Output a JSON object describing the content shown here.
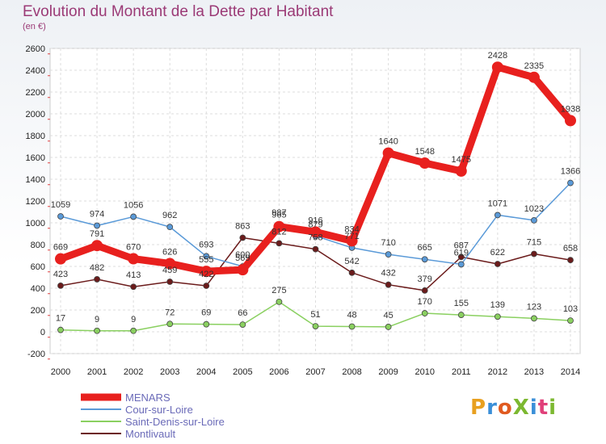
{
  "title": "Evolution du Montant de la Dette par Habitant",
  "subtitle": "(en €)",
  "logo": {
    "text": "ProXiti",
    "colors": [
      "#e8a020",
      "#3a8fd8",
      "#e05a20",
      "#7cb830",
      "#3a8fd8",
      "#e0407a",
      "#7cb830"
    ]
  },
  "chart_data": {
    "type": "line",
    "x": [
      "2000",
      "2001",
      "2002",
      "2003",
      "2004",
      "2005",
      "2006",
      "2007",
      "2008",
      "2009",
      "2010",
      "2011",
      "2012",
      "2013",
      "2014"
    ],
    "ylim": [
      -200,
      2600
    ],
    "yticks": [
      -200,
      0,
      200,
      400,
      600,
      800,
      1000,
      1200,
      1400,
      1600,
      1800,
      2000,
      2200,
      2400,
      2600
    ],
    "grid": true,
    "legend": "bottom-left",
    "series": [
      {
        "name": "Montlivault",
        "color": "#6b1b1b",
        "values": [
          423,
          482,
          413,
          459,
          422,
          863,
          812,
          758,
          542,
          432,
          379,
          687,
          622,
          715,
          658
        ]
      },
      {
        "name": "Saint-Denis-sur-Loire",
        "color": "#8ad060",
        "values": [
          17,
          9,
          9,
          72,
          69,
          66,
          275,
          51,
          48,
          45,
          170,
          155,
          139,
          123,
          103
        ]
      },
      {
        "name": "Cour-sur-Loire",
        "color": "#5a9ad8",
        "values": [
          1059,
          974,
          1056,
          962,
          693,
          600,
          987,
          879,
          771,
          710,
          665,
          619,
          1071,
          1023,
          1366
        ]
      },
      {
        "name": "MENARS",
        "color": "#e8201e",
        "values": [
          669,
          791,
          670,
          626,
          555,
          569,
          965,
          916,
          834,
          1640,
          1548,
          1475,
          2428,
          2335,
          1938
        ]
      }
    ],
    "legend_order": [
      "MENARS",
      "Cour-sur-Loire",
      "Saint-Denis-sur-Loire",
      "Montlivault"
    ]
  }
}
